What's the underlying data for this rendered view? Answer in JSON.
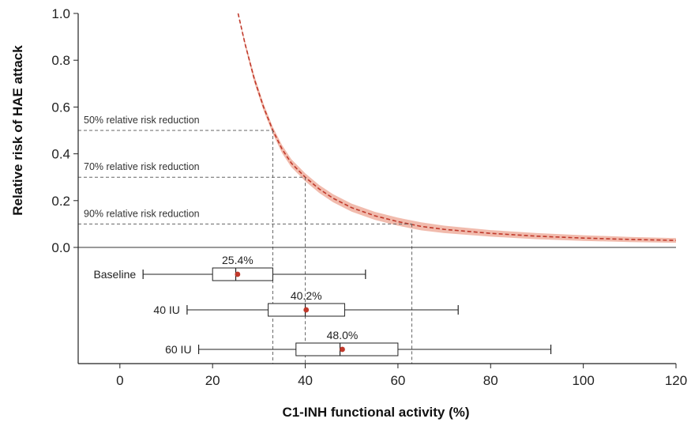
{
  "chart_data": {
    "type": "line",
    "xlabel": "C1-INH functional activity (%)",
    "ylabel": "Relative risk of HAE attack",
    "xlim": [
      -9,
      120
    ],
    "ylim": [
      0,
      1.0
    ],
    "x_ticks": [
      "0",
      "20",
      "40",
      "60",
      "80",
      "100",
      "120"
    ],
    "y_ticks": [
      "0.0",
      "0.2",
      "0.4",
      "0.6",
      "0.8",
      "1.0"
    ],
    "x_tick_values": [
      0,
      20,
      40,
      60,
      80,
      100,
      120
    ],
    "y_tick_values": [
      0.0,
      0.2,
      0.4,
      0.6,
      0.8,
      1.0
    ],
    "curve": {
      "x": [
        25.5,
        27,
        29,
        31,
        33,
        35,
        37,
        40,
        43,
        46,
        50,
        55,
        60,
        65,
        70,
        80,
        90,
        100,
        110,
        120
      ],
      "y": [
        1.0,
        0.87,
        0.72,
        0.6,
        0.5,
        0.42,
        0.36,
        0.3,
        0.25,
        0.21,
        0.17,
        0.135,
        0.11,
        0.09,
        0.077,
        0.06,
        0.048,
        0.04,
        0.034,
        0.03
      ],
      "band_upper": [
        1.0,
        0.88,
        0.735,
        0.615,
        0.515,
        0.437,
        0.377,
        0.317,
        0.267,
        0.227,
        0.187,
        0.152,
        0.127,
        0.107,
        0.093,
        0.074,
        0.061,
        0.052,
        0.045,
        0.04
      ],
      "band_lower": [
        1.0,
        0.86,
        0.705,
        0.585,
        0.485,
        0.403,
        0.343,
        0.283,
        0.233,
        0.193,
        0.153,
        0.118,
        0.093,
        0.073,
        0.061,
        0.046,
        0.035,
        0.028,
        0.023,
        0.02
      ],
      "band_color": "#f0b4a4",
      "line_color": "#c0392b"
    },
    "reference_lines": [
      {
        "label": "50% relative risk reduction",
        "y": 0.5,
        "x": 33
      },
      {
        "label": "70% relative risk reduction",
        "y": 0.3,
        "x": 40
      },
      {
        "label": "90% relative risk reduction",
        "y": 0.1,
        "x": 63
      }
    ],
    "boxplots": [
      {
        "label": "Baseline",
        "whisker_low": 5,
        "q1": 20,
        "median": 25,
        "q3": 33,
        "whisker_high": 53,
        "mean": 25.4,
        "mean_label": "25.4%"
      },
      {
        "label": "40 IU",
        "whisker_low": 14.5,
        "q1": 32,
        "median": 40,
        "q3": 48.5,
        "whisker_high": 73,
        "mean": 40.2,
        "mean_label": "40.2%"
      },
      {
        "label": "60 IU",
        "whisker_low": 17,
        "q1": 38,
        "median": 47.5,
        "q3": 60,
        "whisker_high": 93,
        "mean": 48.0,
        "mean_label": "48.0%"
      }
    ],
    "mean_marker_color": "#c0392b",
    "grid": false,
    "legend": "none"
  }
}
